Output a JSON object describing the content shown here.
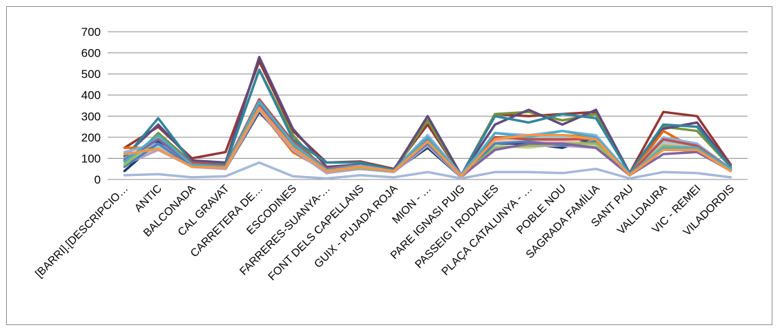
{
  "chart_data": {
    "type": "line",
    "title": "",
    "xlabel": "",
    "ylabel": "",
    "ylim": [
      0,
      700
    ],
    "yticks": [
      0,
      100,
      200,
      300,
      400,
      500,
      600,
      700
    ],
    "grid": true,
    "legend": "none",
    "categories": [
      "[BARRI].[DESCRIPCIO…",
      "ANTIC",
      "BALCONADA",
      "CAL GRAVAT",
      "CARRETERA DE…",
      "ESCODINES",
      "FARRERES-SUANYA-…",
      "FONT DELS CAPELLANS",
      "GUIX - PUJADA ROJA",
      "MION - …",
      "PARE IGNASI PUIG",
      "PASSEIG I RODALIES",
      "PLAÇA CATALUNYA - …",
      "POBLE NOU",
      "SAGRADA FAMÍLIA",
      "SANT PAU",
      "VALLDAURA",
      "VIC - REMEI",
      "VILADORDIS"
    ],
    "series": [
      {
        "color": "#1f3864",
        "values": [
          40,
          180,
          70,
          50,
          320,
          150,
          40,
          50,
          40,
          150,
          10,
          170,
          170,
          150,
          200,
          20,
          170,
          160,
          50
        ]
      },
      {
        "color": "#943634",
        "values": [
          150,
          250,
          100,
          130,
          560,
          230,
          80,
          85,
          50,
          260,
          20,
          310,
          300,
          310,
          320,
          30,
          320,
          300,
          70
        ]
      },
      {
        "color": "#77933c",
        "values": [
          60,
          220,
          80,
          70,
          520,
          210,
          30,
          60,
          40,
          280,
          15,
          310,
          320,
          280,
          310,
          25,
          250,
          230,
          60
        ]
      },
      {
        "color": "#604a7b",
        "values": [
          110,
          260,
          90,
          80,
          580,
          240,
          60,
          70,
          45,
          300,
          20,
          260,
          330,
          260,
          330,
          30,
          240,
          270,
          60
        ]
      },
      {
        "color": "#31859c",
        "values": [
          100,
          290,
          80,
          70,
          520,
          190,
          80,
          80,
          45,
          210,
          20,
          300,
          270,
          310,
          290,
          30,
          260,
          250,
          60
        ]
      },
      {
        "color": "#e46c0a",
        "values": [
          150,
          150,
          70,
          60,
          330,
          130,
          40,
          60,
          40,
          190,
          15,
          200,
          200,
          210,
          200,
          20,
          230,
          140,
          40
        ]
      },
      {
        "color": "#8eb4e3",
        "values": [
          130,
          170,
          80,
          60,
          380,
          180,
          50,
          65,
          40,
          210,
          20,
          220,
          210,
          230,
          210,
          25,
          200,
          170,
          50
        ]
      },
      {
        "color": "#e6b9b8",
        "values": [
          90,
          160,
          70,
          55,
          350,
          160,
          40,
          55,
          40,
          180,
          15,
          180,
          180,
          180,
          170,
          20,
          170,
          150,
          45
        ]
      },
      {
        "color": "#c3d69b",
        "values": [
          80,
          150,
          60,
          55,
          340,
          150,
          35,
          50,
          35,
          170,
          15,
          160,
          150,
          170,
          160,
          20,
          160,
          140,
          40
        ]
      },
      {
        "color": "#b3a2c7",
        "values": [
          70,
          140,
          60,
          50,
          330,
          140,
          30,
          50,
          35,
          160,
          10,
          150,
          160,
          160,
          150,
          20,
          150,
          130,
          40
        ]
      },
      {
        "color": "#93cddd",
        "values": [
          100,
          160,
          70,
          60,
          360,
          170,
          45,
          60,
          40,
          190,
          15,
          190,
          200,
          200,
          190,
          25,
          180,
          160,
          50
        ]
      },
      {
        "color": "#4f81bd",
        "values": [
          60,
          170,
          60,
          55,
          340,
          160,
          40,
          55,
          40,
          170,
          15,
          170,
          180,
          160,
          180,
          20,
          160,
          150,
          45
        ]
      },
      {
        "color": "#c0504d",
        "values": [
          90,
          200,
          80,
          65,
          380,
          180,
          50,
          60,
          40,
          200,
          15,
          200,
          190,
          190,
          190,
          25,
          190,
          160,
          50
        ]
      },
      {
        "color": "#9bbb59",
        "values": [
          70,
          200,
          70,
          60,
          360,
          170,
          40,
          55,
          40,
          190,
          15,
          150,
          160,
          170,
          170,
          20,
          160,
          150,
          45
        ]
      },
      {
        "color": "#8064a2",
        "values": [
          95,
          190,
          70,
          60,
          350,
          170,
          45,
          60,
          40,
          190,
          15,
          140,
          170,
          170,
          150,
          20,
          120,
          130,
          45
        ]
      },
      {
        "color": "#4bacc6",
        "values": [
          85,
          210,
          70,
          60,
          370,
          170,
          45,
          60,
          40,
          200,
          15,
          220,
          200,
          230,
          200,
          25,
          150,
          150,
          50
        ]
      },
      {
        "color": "#f79646",
        "values": [
          120,
          145,
          60,
          55,
          340,
          150,
          40,
          60,
          40,
          180,
          15,
          190,
          210,
          210,
          190,
          20,
          140,
          140,
          40
        ]
      },
      {
        "color": "#a5b8d9",
        "values": [
          20,
          25,
          10,
          15,
          80,
          15,
          5,
          20,
          10,
          35,
          5,
          35,
          35,
          30,
          50,
          5,
          35,
          30,
          10
        ]
      }
    ]
  }
}
